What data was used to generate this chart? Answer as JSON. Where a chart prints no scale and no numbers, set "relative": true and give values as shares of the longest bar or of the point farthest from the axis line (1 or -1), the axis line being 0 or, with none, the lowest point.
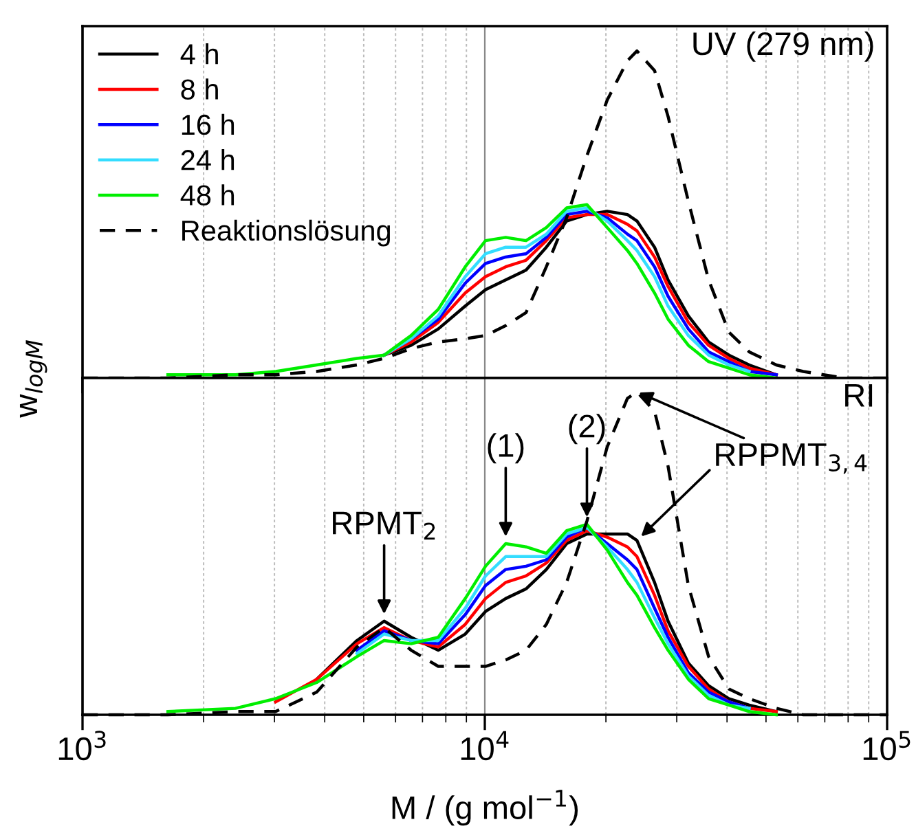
{
  "chart_data": [
    {
      "type": "line",
      "relative": true,
      "log": "x",
      "grid": "x",
      "legend": "top left",
      "tick_labels": false,
      "ylabel": "w$_{logM}$",
      "xlim": [
        1000,
        100000
      ],
      "xticks": [
        {
          "value": 1000,
          "label": null
        },
        {
          "value": 10000,
          "label": null
        },
        {
          "value": 100000,
          "label": null
        }
      ],
      "x": [
        1000,
        1630,
        2400,
        3020,
        3820,
        4810,
        5620,
        6560,
        7660,
        8940,
        10040,
        11270,
        12660,
        14220,
        15970,
        17940,
        20150,
        22620,
        23890,
        26420,
        28540,
        32060,
        36000,
        40440,
        45410,
        53020,
        61890,
        78050,
        100000
      ],
      "annotations": [
        "UV (279 nm)"
      ],
      "series": [
        {
          "name": "4 h",
          "color": "#000000",
          "values": [
            null,
            null,
            null,
            null,
            null,
            null,
            0.07,
            0.1,
            0.15,
            0.22,
            0.27,
            0.3,
            0.33,
            0.4,
            0.48,
            0.5,
            0.51,
            0.5,
            0.48,
            0.4,
            0.3,
            0.19,
            0.11,
            0.07,
            0.04,
            0.01,
            null,
            null,
            null
          ]
        },
        {
          "name": "8 h",
          "color": "#ff0000",
          "values": [
            null,
            null,
            null,
            null,
            null,
            null,
            0.07,
            0.11,
            0.17,
            0.26,
            0.31,
            0.34,
            0.36,
            0.42,
            0.49,
            0.5,
            0.5,
            0.47,
            0.45,
            0.37,
            0.28,
            0.17,
            0.1,
            0.06,
            0.03,
            0.01,
            null,
            null,
            null
          ]
        },
        {
          "name": "16 h",
          "color": "#0000ff",
          "values": [
            null,
            null,
            null,
            null,
            null,
            null,
            0.07,
            0.12,
            0.18,
            0.29,
            0.35,
            0.37,
            0.38,
            0.43,
            0.5,
            0.51,
            0.49,
            0.44,
            0.42,
            0.34,
            0.25,
            0.15,
            0.08,
            0.05,
            0.02,
            0.01,
            null,
            null,
            null
          ]
        },
        {
          "name": "24 h",
          "color": "#33ddff",
          "values": [
            null,
            null,
            null,
            null,
            null,
            null,
            0.07,
            0.12,
            0.19,
            0.31,
            0.38,
            0.4,
            0.4,
            0.44,
            0.51,
            0.52,
            0.48,
            0.42,
            0.39,
            0.31,
            0.22,
            0.13,
            0.07,
            0.04,
            0.02,
            null,
            null,
            null,
            null
          ]
        },
        {
          "name": "48 h",
          "color": "#00ee00",
          "values": [
            null,
            0.01,
            0.01,
            0.02,
            0.04,
            0.06,
            0.07,
            0.13,
            0.21,
            0.34,
            0.42,
            0.43,
            0.42,
            0.46,
            0.52,
            0.53,
            0.46,
            0.39,
            0.35,
            0.26,
            0.18,
            0.1,
            0.05,
            0.03,
            0.01,
            0,
            null,
            null,
            null
          ]
        },
        {
          "name": "Reaktionslösung",
          "color": "#000000",
          "line_style": "dashed",
          "values": [
            0,
            0,
            0.01,
            0.01,
            0.02,
            0.04,
            0.06,
            0.09,
            0.11,
            0.12,
            0.13,
            0.16,
            0.2,
            0.34,
            0.49,
            0.68,
            0.85,
            0.97,
            1,
            0.94,
            0.8,
            0.54,
            0.3,
            0.14,
            0.08,
            0.04,
            0.02,
            0,
            0
          ]
        }
      ]
    },
    {
      "type": "line",
      "relative": true,
      "log": "x",
      "grid": "x",
      "tick_labels": "x",
      "xlabel": "M / (g mol$^{−1}$)",
      "xlim": [
        1000,
        100000
      ],
      "xticks": [
        {
          "value": 1000,
          "label": "10$^{3}$"
        },
        {
          "value": 10000,
          "label": "10$^{4}$"
        },
        {
          "value": 100000,
          "label": "10$^{5}$"
        }
      ],
      "x": [
        1000,
        1630,
        2400,
        3020,
        3820,
        4810,
        5620,
        6560,
        7660,
        8940,
        10040,
        11270,
        12660,
        14220,
        15970,
        17940,
        20150,
        22620,
        23890,
        26420,
        28540,
        32060,
        36000,
        40440,
        45410,
        53020,
        61890,
        78050,
        100000
      ],
      "annotations": [
        "RI",
        {
          "text": "RPMT$_{2}$",
          "x": 5620,
          "y": 0.29
        },
        {
          "text": "(1)",
          "x": 11270,
          "y": 0.53
        },
        {
          "text": "(2)",
          "x": 17940,
          "y": 0.59
        },
        {
          "text": "RPPMT$_{3,4}$",
          "x": 23890,
          "y": 1
        }
      ],
      "series": [
        {
          "color": "#000000",
          "values": [
            null,
            null,
            null,
            null,
            0.11,
            0.23,
            0.29,
            0.24,
            0.2,
            0.25,
            0.32,
            0.36,
            0.39,
            0.45,
            0.53,
            0.56,
            0.56,
            0.56,
            0.54,
            0.41,
            0.29,
            0.16,
            0.09,
            0.05,
            0.03,
            0.01,
            null,
            null,
            null
          ]
        },
        {
          "color": "#ff0000",
          "values": [
            null,
            null,
            null,
            0.04,
            0.11,
            0.22,
            0.27,
            0.23,
            0.21,
            0.28,
            0.36,
            0.41,
            0.43,
            0.47,
            0.54,
            0.57,
            0.55,
            0.52,
            0.49,
            0.37,
            0.26,
            0.15,
            0.08,
            0.04,
            0.02,
            0.01,
            null,
            null,
            null
          ]
        },
        {
          "color": "#0000ff",
          "values": [
            null,
            null,
            null,
            null,
            null,
            0.2,
            0.26,
            0.23,
            0.22,
            0.31,
            0.4,
            0.45,
            0.46,
            0.48,
            0.55,
            0.58,
            0.53,
            0.48,
            0.45,
            0.33,
            0.24,
            0.13,
            0.07,
            0.04,
            0.02,
            null,
            null,
            null,
            null
          ]
        },
        {
          "color": "#33ddff",
          "values": [
            null,
            null,
            null,
            null,
            null,
            0.19,
            0.25,
            0.23,
            0.23,
            0.33,
            0.43,
            0.49,
            0.49,
            0.49,
            0.56,
            0.58,
            0.52,
            0.45,
            0.41,
            0.3,
            0.22,
            0.12,
            0.06,
            0.03,
            0.02,
            null,
            null,
            null,
            null
          ]
        },
        {
          "color": "#00ee00",
          "values": [
            null,
            0.01,
            0.02,
            0.05,
            0.1,
            0.18,
            0.23,
            0.22,
            0.24,
            0.36,
            0.46,
            0.53,
            0.52,
            0.5,
            0.57,
            0.59,
            0.51,
            0.41,
            0.37,
            0.27,
            0.2,
            0.11,
            0.05,
            0.03,
            0.01,
            0,
            null,
            null,
            null
          ]
        },
        {
          "color": "#000000",
          "line_style": "dashed",
          "values": [
            0,
            0,
            0.01,
            0.01,
            0.07,
            0.21,
            0.27,
            0.2,
            0.15,
            0.15,
            0.15,
            0.17,
            0.2,
            0.28,
            0.41,
            0.6,
            0.83,
            0.98,
            1,
            0.94,
            0.77,
            0.4,
            0.18,
            0.08,
            0.05,
            0.02,
            0,
            0,
            0
          ]
        }
      ]
    }
  ]
}
